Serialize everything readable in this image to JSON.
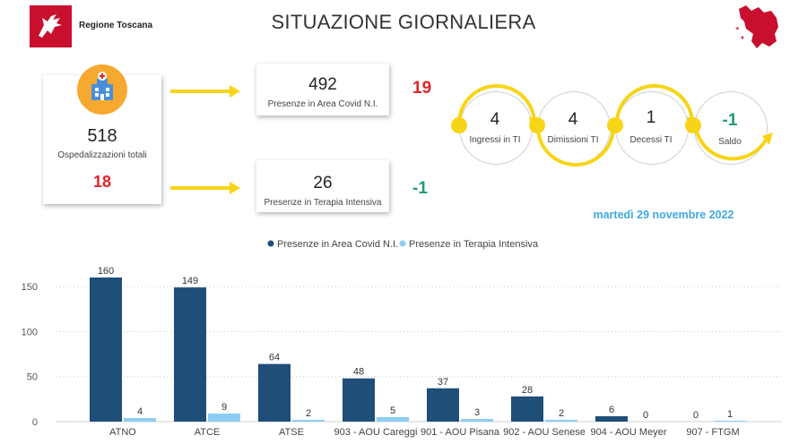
{
  "header": {
    "logo_name": "Regione Toscana",
    "title": "SITUAZIONE GIORNALIERA"
  },
  "summary": {
    "total": {
      "value": "518",
      "label": "Ospedalizzazioni totali",
      "delta": "18"
    },
    "area_covid": {
      "value": "492",
      "label": "Presenze in Area Covid N.I.",
      "delta": "19"
    },
    "terapia_intensiva": {
      "value": "26",
      "label": "Presenze in Terapia Intensiva",
      "delta": "-1"
    }
  },
  "flow": {
    "ingressi": {
      "value": "4",
      "label": "Ingressi in TI"
    },
    "dimissioni": {
      "value": "4",
      "label": "Dimissioni TI"
    },
    "decessi": {
      "value": "1",
      "label": "Decessi TI"
    },
    "saldo": {
      "value": "-1",
      "label": "Saldo"
    }
  },
  "date": "martedì 29 novembre 2022",
  "colors": {
    "series_area": "#1f4e79",
    "series_ti": "#8ecdf3",
    "positive_delta": "#e0242a",
    "negative_delta": "#1e9e6c",
    "arrow": "#f7d417",
    "date": "#3fa9e0"
  },
  "chart_data": {
    "type": "bar",
    "categories": [
      "ATNO",
      "ATCE",
      "ATSE",
      "903 - AOU Careggi",
      "901 - AOU Pisana",
      "902 - AOU Senese",
      "904 - AOU Meyer",
      "907 - FTGM"
    ],
    "series": [
      {
        "name": "Presenze in Area Covid N.I.",
        "values": [
          160,
          149,
          64,
          48,
          37,
          28,
          6,
          0
        ]
      },
      {
        "name": "Presenze in Terapia Intensiva",
        "values": [
          4,
          9,
          2,
          5,
          3,
          2,
          0,
          1
        ]
      }
    ],
    "ylim": [
      0,
      160
    ],
    "yticks": [
      0,
      50,
      100,
      150
    ],
    "grid": true,
    "legend": "top-center"
  }
}
